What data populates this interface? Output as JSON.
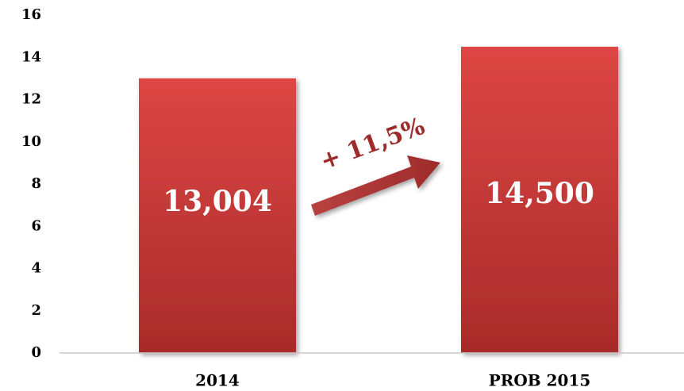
{
  "chart_data": {
    "type": "bar",
    "categories": [
      "2014",
      "PROB 2015"
    ],
    "values": [
      13.004,
      14.5
    ],
    "value_labels": [
      "13,004",
      "14,500"
    ],
    "color": "#d9413f",
    "ylim": [
      0,
      16
    ],
    "yticks": [
      0,
      2,
      4,
      6,
      8,
      10,
      12,
      14,
      16
    ],
    "annotation": "+ 11,5%"
  }
}
